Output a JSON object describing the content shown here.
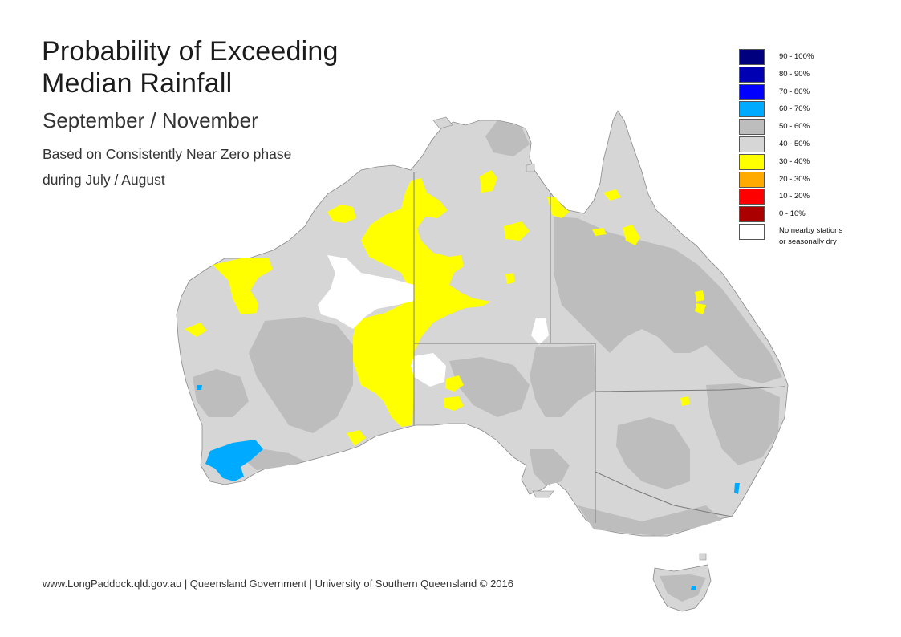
{
  "title": {
    "line1": "Probability of Exceeding",
    "line2": "Median Rainfall"
  },
  "subtitle": "September / November",
  "note": {
    "line1": "Based on Consistently Near Zero phase",
    "line2": "during July / August"
  },
  "legend": [
    {
      "label": "90 - 100%",
      "color": "#00007f"
    },
    {
      "label": "80 - 90%",
      "color": "#0000b2"
    },
    {
      "label": "70 - 80%",
      "color": "#0000ff"
    },
    {
      "label": "60 - 70%",
      "color": "#00aaff"
    },
    {
      "label": "50 - 60%",
      "color": "#bdbdbd"
    },
    {
      "label": "40 - 50%",
      "color": "#d6d6d6"
    },
    {
      "label": "30 - 40%",
      "color": "#ffff00"
    },
    {
      "label": "20 - 30%",
      "color": "#ffaa00"
    },
    {
      "label": "10 - 20%",
      "color": "#ff0000"
    },
    {
      "label": "0 - 10%",
      "color": "#aa0000"
    },
    {
      "label": "No nearby stations",
      "label2": "or seasonally dry",
      "color": "#ffffff"
    }
  ],
  "footer": "www.LongPaddock.qld.gov.au | Queensland Government | University of Southern Queensland © 2016",
  "colors": {
    "light_grey": "#d6d6d6",
    "dark_grey": "#bdbdbd",
    "yellow": "#ffff00",
    "light_blue": "#00aaff",
    "white": "#ffffff",
    "border": "#7a7a7a"
  }
}
